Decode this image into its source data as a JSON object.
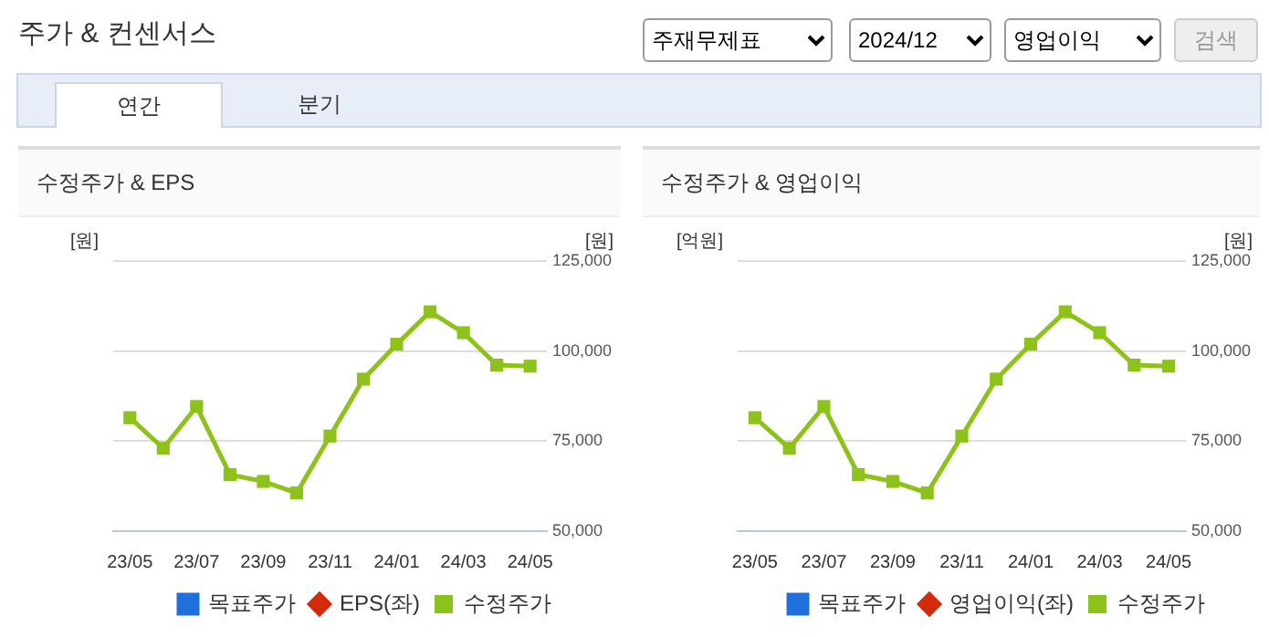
{
  "chart_data": [
    {
      "type": "other",
      "title": "주가 & 컨센서스",
      "annotations": [
        "주재무제표",
        "2024/12",
        "영업이익",
        "검색",
        "연간",
        "분기"
      ]
    },
    {
      "type": "line",
      "title": "수정주가 & EPS",
      "ylabel": "[원]",
      "y2label": "[원]",
      "categories": [
        "23/05",
        null,
        "23/07",
        null,
        "23/09",
        null,
        "23/11",
        null,
        "24/01",
        null,
        "24/03",
        null,
        "24/05"
      ],
      "series": [
        {
          "name": "목표주가",
          "type": "bar",
          "color": "#1f6fdc",
          "values": [
            null,
            null,
            null,
            null,
            null,
            null,
            null,
            null,
            null,
            null,
            null,
            null,
            null
          ]
        },
        {
          "name": "EPS(좌)",
          "type": "line",
          "marker": "diamond",
          "color": "#d42a0c",
          "values": [
            null,
            null,
            null,
            null,
            null,
            null,
            null,
            null,
            null,
            null,
            null,
            null,
            null
          ]
        },
        {
          "name": "수정주가",
          "type": "line",
          "axis": "y2",
          "color": "#8cc21a",
          "values": [
            81500,
            73000,
            84600,
            65700,
            63800,
            60600,
            76400,
            92200,
            101900,
            110900,
            105100,
            96100,
            95800
          ]
        }
      ],
      "y2lim": [
        50000,
        125000
      ],
      "y2ticks": [
        {
          "value": 50000,
          "label": "50,000"
        },
        {
          "value": 75000,
          "label": "75,000"
        },
        {
          "value": 100000,
          "label": "100,000"
        },
        {
          "value": 125000,
          "label": "125,000"
        }
      ],
      "grid": true,
      "legend": "bottom",
      "marker": "square"
    },
    {
      "type": "line",
      "title": "수정주가 & 영업이익",
      "ylabel": "[억원]",
      "y2label": "[원]",
      "categories": [
        "23/05",
        null,
        "23/07",
        null,
        "23/09",
        null,
        "23/11",
        null,
        "24/01",
        null,
        "24/03",
        null,
        "24/05"
      ],
      "series": [
        {
          "name": "목표주가",
          "type": "bar",
          "color": "#1f6fdc",
          "values": [
            null,
            null,
            null,
            null,
            null,
            null,
            null,
            null,
            null,
            null,
            null,
            null,
            null
          ]
        },
        {
          "name": "영업이익(좌)",
          "type": "line",
          "marker": "diamond",
          "color": "#d42a0c",
          "values": [
            null,
            null,
            null,
            null,
            null,
            null,
            null,
            null,
            null,
            null,
            null,
            null,
            null
          ]
        },
        {
          "name": "수정주가",
          "type": "line",
          "axis": "y2",
          "color": "#8cc21a",
          "values": [
            81500,
            73000,
            84600,
            65700,
            63800,
            60600,
            76400,
            92200,
            101900,
            110900,
            105100,
            96100,
            95800
          ]
        }
      ],
      "y2lim": [
        50000,
        125000
      ],
      "y2ticks": [
        {
          "value": 50000,
          "label": "50,000"
        },
        {
          "value": 75000,
          "label": "75,000"
        },
        {
          "value": 100000,
          "label": "100,000"
        },
        {
          "value": 125000,
          "label": "125,000"
        }
      ],
      "grid": true,
      "legend": "bottom",
      "marker": "square"
    }
  ]
}
